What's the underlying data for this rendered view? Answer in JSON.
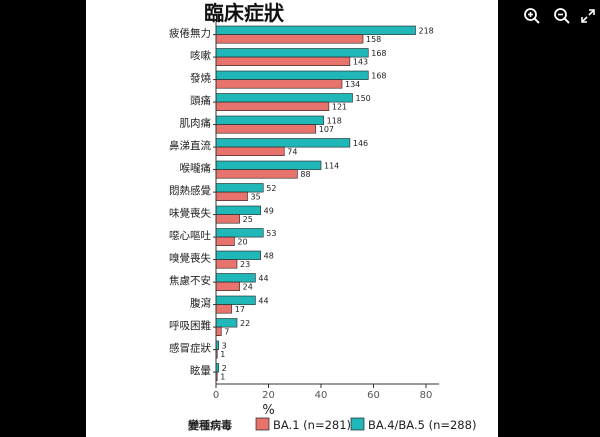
{
  "viewer": {
    "toolbar": [
      {
        "name": "zoom-in-icon"
      },
      {
        "name": "zoom-out-icon"
      },
      {
        "name": "fullscreen-icon"
      }
    ]
  },
  "colors": {
    "ba1": "#E8736C",
    "ba45": "#1FB7B7",
    "axis": "#333333",
    "text": "#222222"
  },
  "chart_data": {
    "type": "bar",
    "orientation": "horizontal",
    "title": "臨床症狀",
    "xlabel": "%",
    "xlim": [
      0,
      85
    ],
    "xticks": [
      0,
      20,
      40,
      60,
      80
    ],
    "categories": [
      "疲倦無力",
      "咳嗽",
      "發燒",
      "頭痛",
      "肌肉痛",
      "鼻涕直流",
      "喉嚨痛",
      "悶熱感覺",
      "味覺喪失",
      "噁心嘔吐",
      "嗅覺喪失",
      "焦慮不安",
      "腹瀉",
      "呼吸困難",
      "感冒症狀",
      "眩暈"
    ],
    "series": [
      {
        "name": "BA.4/BA.5 (n=288)",
        "color": "#1FB7B7",
        "values": [
          76,
          58,
          58,
          52,
          41,
          51,
          40,
          18,
          17,
          18,
          17,
          15,
          15,
          8,
          1,
          1
        ],
        "labels": [
          "218",
          "168",
          "168",
          "150",
          "118",
          "146",
          "114",
          "52",
          "49",
          "53",
          "48",
          "44",
          "44",
          "22",
          "3",
          "2"
        ]
      },
      {
        "name": "BA.1 (n=281)",
        "color": "#E8736C",
        "values": [
          56,
          51,
          48,
          43,
          38,
          26,
          31,
          12,
          9,
          7,
          8,
          9,
          6,
          2,
          0.4,
          0.4
        ],
        "labels": [
          "158",
          "143",
          "134",
          "121",
          "107",
          "74",
          "88",
          "35",
          "25",
          "20",
          "23",
          "24",
          "17",
          "7",
          "1",
          "1"
        ]
      }
    ],
    "legend": {
      "title": "變種病毒",
      "position": "bottom",
      "items": [
        {
          "label": "BA.1 (n=281)",
          "color": "#E8736C"
        },
        {
          "label": "BA.4/BA.5 (n=288)",
          "color": "#1FB7B7"
        }
      ]
    },
    "grid": false
  }
}
